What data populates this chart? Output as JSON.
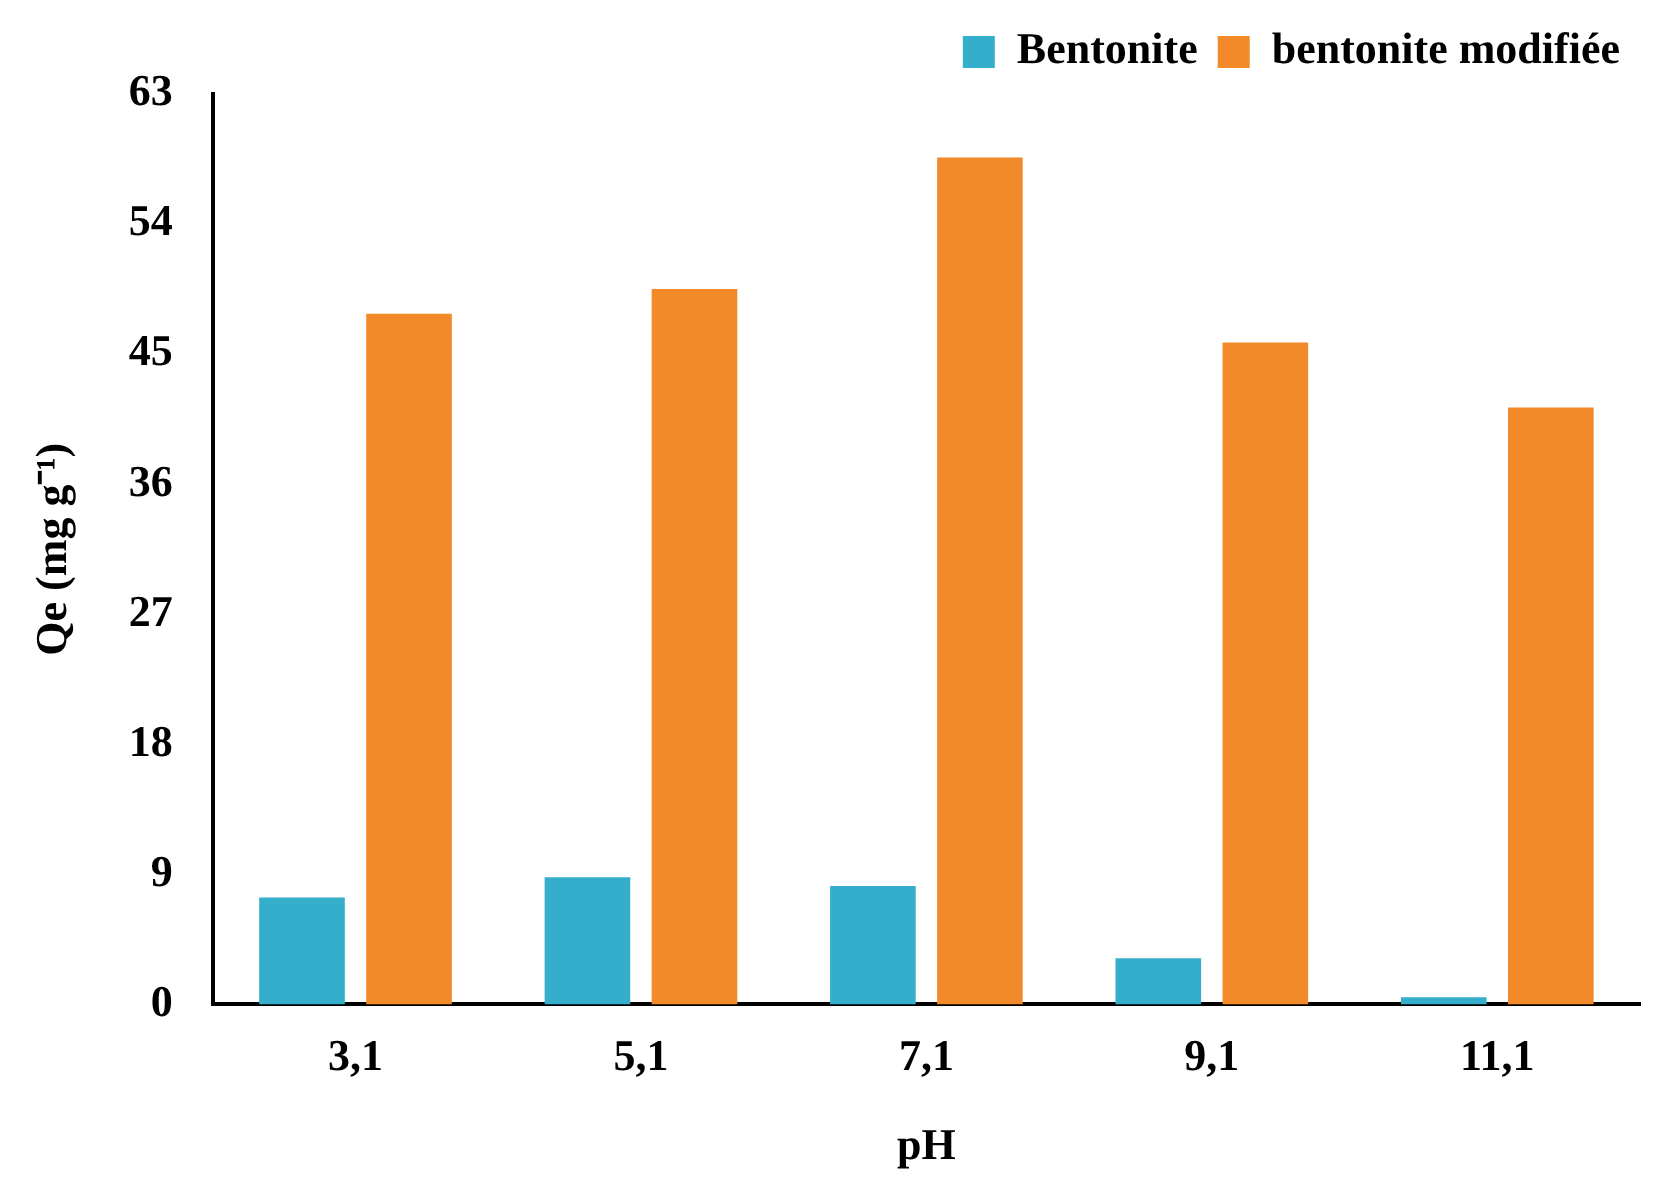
{
  "chart_data": {
    "type": "bar",
    "xlabel": "pH",
    "ylabel": "Qe (mg g⁻¹)",
    "categories": [
      "3,1",
      "5,1",
      "7,1",
      "9,1",
      "11,1"
    ],
    "series": [
      {
        "name": "Bentonite",
        "color": "#35aecb",
        "values": [
          7.4,
          8.8,
          8.2,
          3.2,
          0.5
        ]
      },
      {
        "name": "bentonite modifiée",
        "color": "#f28a2a",
        "values": [
          47.8,
          49.5,
          58.6,
          45.8,
          41.3
        ]
      }
    ],
    "ylim": [
      0,
      63
    ],
    "yticks": [
      0,
      9,
      18,
      27,
      36,
      45,
      54,
      63
    ],
    "grid": false,
    "legend": "top right"
  }
}
